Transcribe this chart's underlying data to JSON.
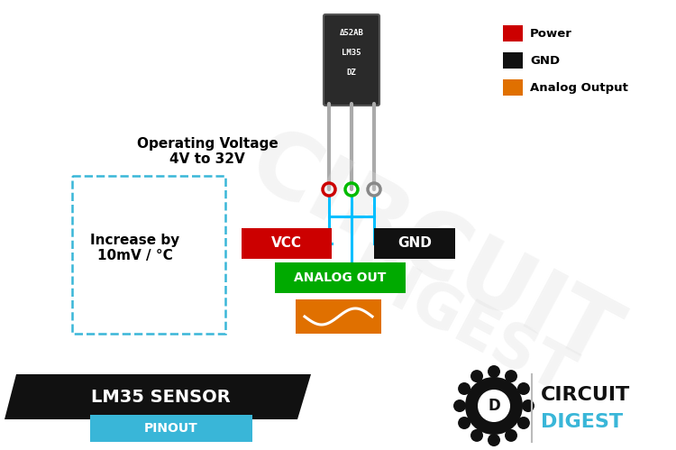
{
  "bg_color": "#ffffff",
  "title_text": "LM35 SENSOR",
  "subtitle_text": "PINOUT",
  "title_bg": "#111111",
  "subtitle_bg": "#39b6d8",
  "legend_items": [
    {
      "label": "Power",
      "color": "#cc0000"
    },
    {
      "label": "GND",
      "color": "#111111"
    },
    {
      "label": "Analog Output",
      "color": "#e07000"
    }
  ],
  "wire_color": "#00bfff",
  "analog_wave_bg": "#e07000",
  "chip_color": "#2a2a2a",
  "chip_text": [
    "Δ52AB",
    "LM35",
    "DZ"
  ],
  "dot_colors": [
    "#cc0000",
    "#00bb00",
    "#888888"
  ]
}
